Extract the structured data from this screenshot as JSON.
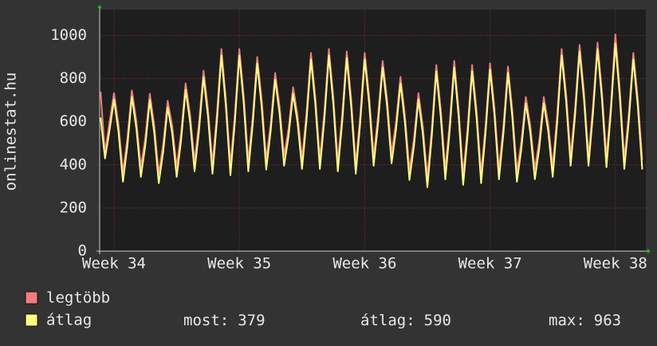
{
  "chart_data": {
    "type": "line",
    "y_label": "onlinestat.hu",
    "x": [
      -0.75,
      -0.5,
      -0.25,
      0,
      0.25,
      0.5,
      0.75,
      1,
      1.25,
      1.5,
      1.75,
      2,
      2.25,
      2.5,
      2.75,
      3,
      3.25,
      3.5,
      3.75,
      4,
      4.25,
      4.5,
      4.75,
      5,
      5.25,
      5.5,
      5.75,
      6,
      6.25,
      6.5,
      6.75,
      7,
      7.25,
      7.5,
      7.75,
      8,
      8.25,
      8.5,
      8.75,
      9,
      9.25,
      9.5,
      9.75,
      10,
      10.25,
      10.5,
      10.75,
      11,
      11.25,
      11.5,
      11.75,
      12,
      12.25,
      12.5,
      12.75,
      13,
      13.25,
      13.5,
      13.75,
      14,
      14.25,
      14.5,
      14.75,
      15,
      15.25,
      15.5,
      15.75,
      16,
      16.25,
      16.5,
      16.75,
      17,
      17.25,
      17.5,
      17.75,
      18,
      18.25,
      18.5,
      18.75,
      19,
      19.25,
      19.5,
      19.75,
      20,
      20.25,
      20.5,
      20.75,
      21,
      21.25,
      21.5,
      21.75,
      22,
      22.25,
      22.5,
      22.75,
      23,
      23.25,
      23.5,
      23.75,
      24,
      24.25,
      24.5,
      24.75,
      25,
      25.25,
      25.5,
      25.75,
      26,
      26.25,
      26.5,
      26.75,
      27,
      27.25,
      27.5,
      27.75,
      28,
      28.25,
      28.5,
      28.75,
      29,
      29.25,
      29.5
    ],
    "series": [
      {
        "name": "legtöbb",
        "color": "#f47c7c",
        "values": [
          740,
          455,
          600,
          733,
          588,
          367,
          524,
          745,
          605,
          389,
          527,
          730,
          583,
          360,
          496,
          697,
          581,
          389,
          551,
          778,
          634,
          415,
          594,
          837,
          658,
          404,
          638,
          937,
          705,
          397,
          635,
          937,
          714,
          415,
          625,
          900,
          699,
          423,
          592,
          826,
          671,
          441,
          568,
          760,
          631,
          426,
          640,
          919,
          710,
          426,
          649,
          937,
          714,
          415,
          638,
          926,
          703,
          404,
          629,
          919,
          718,
          441,
          629,
          882,
          705,
          452,
          598,
          808,
          629,
          375,
          522,
          733,
          575,
          341,
          570,
          863,
          658,
          378,
          598,
          882,
          655,
          352,
          575,
          863,
          649,
          360,
          583,
          871,
          662,
          378,
          585,
          856,
          649,
          367,
          509,
          715,
          584,
          378,
          514,
          715,
          590,
          389,
          631,
          937,
          727,
          441,
          666,
          956,
          736,
          441,
          672,
          967,
          738,
          434,
          681,
          1005,
          747,
          426,
          640,
          919,
          709,
          424
        ]
      },
      {
        "name": "átlag",
        "color": "#ffff80",
        "values": [
          620,
          430,
          560,
          703,
          553,
          322,
          489,
          715,
          570,
          344,
          492,
          700,
          548,
          315,
          461,
          667,
          546,
          344,
          516,
          748,
          599,
          370,
          559,
          807,
          623,
          359,
          603,
          907,
          670,
          352,
          600,
          907,
          679,
          370,
          590,
          870,
          664,
          378,
          557,
          796,
          636,
          396,
          533,
          730,
          596,
          381,
          605,
          889,
          675,
          381,
          614,
          907,
          679,
          370,
          603,
          896,
          668,
          359,
          594,
          889,
          683,
          396,
          594,
          852,
          670,
          407,
          563,
          778,
          594,
          330,
          487,
          703,
          540,
          296,
          535,
          833,
          623,
          333,
          563,
          852,
          620,
          307,
          540,
          833,
          614,
          315,
          548,
          841,
          627,
          333,
          550,
          826,
          614,
          322,
          474,
          685,
          549,
          333,
          479,
          685,
          555,
          344,
          596,
          907,
          692,
          396,
          631,
          926,
          701,
          396,
          637,
          937,
          703,
          389,
          646,
          963,
          712,
          381,
          605,
          889,
          674,
          379
        ]
      }
    ],
    "xlim": [
      -0.8,
      29.7
    ],
    "xticks": [
      {
        "value": 0,
        "label": "Week 34"
      },
      {
        "value": 7,
        "label": "Week 35"
      },
      {
        "value": 14,
        "label": "Week 36"
      },
      {
        "value": 21,
        "label": "Week 37"
      },
      {
        "value": 28,
        "label": "Week 38"
      }
    ],
    "ylim": [
      0,
      1120
    ],
    "yticks": [
      0,
      200,
      400,
      600,
      800,
      1000
    ],
    "grid": true,
    "stats": [
      {
        "label": "most:",
        "value": 379
      },
      {
        "label": "átlag:",
        "value": 590
      },
      {
        "label": "max:",
        "value": 963
      }
    ]
  }
}
